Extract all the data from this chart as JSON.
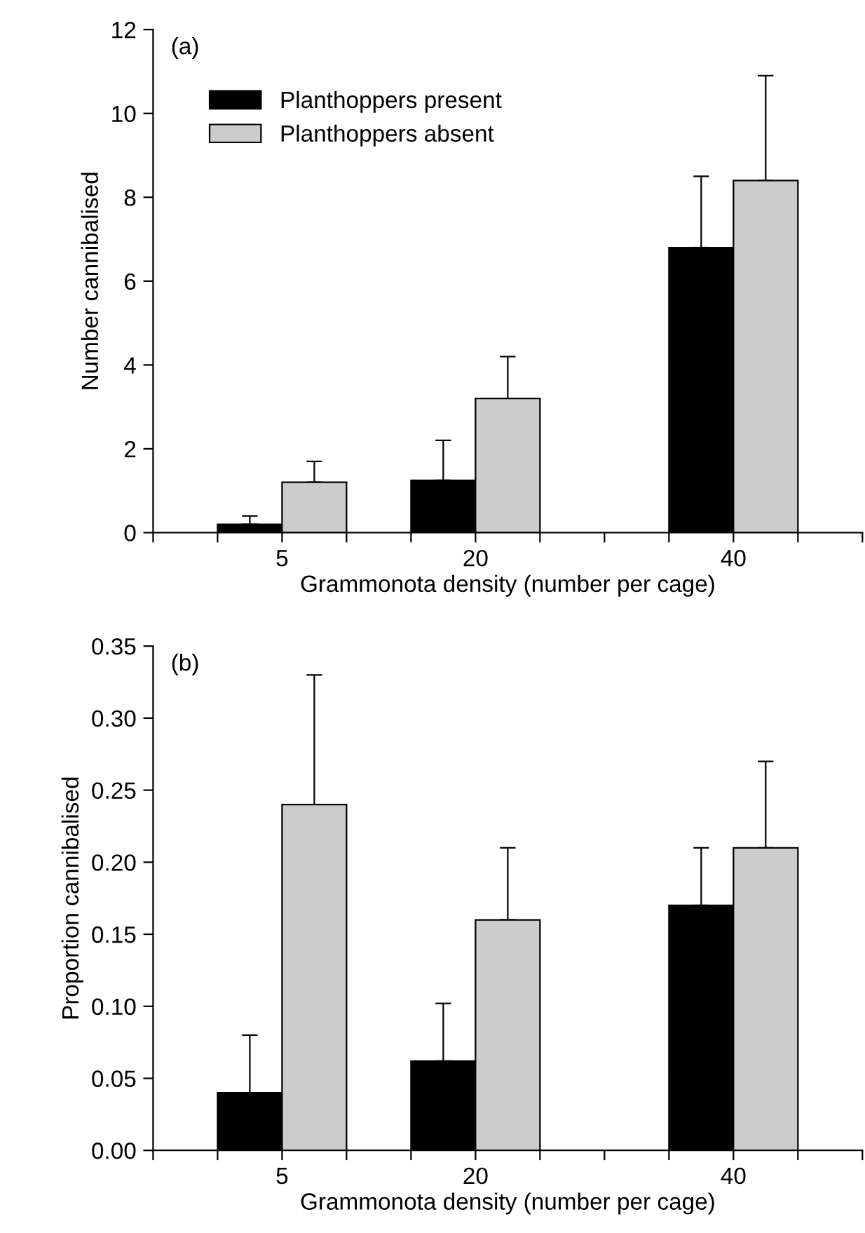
{
  "chart_data": [
    {
      "type": "bar",
      "xlabel": "Grammonota density (number per cage)",
      "ylabel": "Number cannibalised",
      "annotations": [
        "(a)"
      ],
      "x": [
        5,
        20,
        40
      ],
      "xlim": [
        -5,
        50
      ],
      "xticks": [
        {
          "value": -5,
          "label": null
        },
        {
          "value": 0,
          "label": null
        },
        5,
        {
          "value": 10,
          "label": null
        },
        {
          "value": 15,
          "label": null
        },
        20,
        {
          "value": 25,
          "label": null
        },
        {
          "value": 30,
          "label": null
        },
        {
          "value": 35,
          "label": null
        },
        40,
        {
          "value": 45,
          "label": null
        },
        {
          "value": 50,
          "label": null
        }
      ],
      "ylim": [
        0,
        12
      ],
      "yticks": [
        0,
        2,
        4,
        6,
        8,
        10,
        12
      ],
      "legend": "top left",
      "grid": false,
      "series": [
        {
          "name": "Planthoppers present",
          "color": "#000000",
          "values": [
            0.2,
            1.25,
            6.8
          ],
          "errors": [
            [
              0.2,
              0.4
            ],
            [
              1.25,
              2.2
            ],
            [
              6.8,
              8.5
            ]
          ]
        },
        {
          "name": "Planthoppers absent",
          "color": "#cccccc",
          "values": [
            1.2,
            3.2,
            8.4
          ],
          "errors": [
            [
              1.2,
              1.7
            ],
            [
              3.2,
              4.2
            ],
            [
              8.4,
              10.9
            ]
          ]
        }
      ]
    },
    {
      "type": "bar",
      "xlabel": "Grammonota density (number per cage)",
      "ylabel": "Proportion cannibalised",
      "annotations": [
        "(b)"
      ],
      "x": [
        5,
        20,
        40
      ],
      "xlim": [
        -5,
        50
      ],
      "xticks": [
        {
          "value": -5,
          "label": null
        },
        {
          "value": 0,
          "label": null
        },
        5,
        {
          "value": 10,
          "label": null
        },
        {
          "value": 15,
          "label": null
        },
        20,
        {
          "value": 25,
          "label": null
        },
        {
          "value": 30,
          "label": null
        },
        {
          "value": 35,
          "label": null
        },
        40,
        {
          "value": 45,
          "label": null
        },
        {
          "value": 50,
          "label": null
        }
      ],
      "ylim": [
        0,
        0.35
      ],
      "yticks": [
        {
          "value": 0,
          "label": "0.00"
        },
        {
          "value": 0.05,
          "label": "0.05"
        },
        {
          "value": 0.1,
          "label": "0.10"
        },
        {
          "value": 0.15,
          "label": "0.15"
        },
        {
          "value": 0.2,
          "label": "0.20"
        },
        {
          "value": 0.25,
          "label": "0.25"
        },
        {
          "value": 0.3,
          "label": "0.30"
        },
        {
          "value": 0.35,
          "label": "0.35"
        }
      ],
      "legend": false,
      "grid": false,
      "series": [
        {
          "color": "#000000",
          "values": [
            0.04,
            0.062,
            0.17
          ],
          "errors": [
            [
              0.04,
              0.08
            ],
            [
              0.062,
              0.102
            ],
            [
              0.17,
              0.21
            ]
          ]
        },
        {
          "color": "#cccccc",
          "values": [
            0.24,
            0.16,
            0.21
          ],
          "errors": [
            [
              0.24,
              0.33
            ],
            [
              0.16,
              0.21
            ],
            [
              0.21,
              0.27
            ]
          ]
        }
      ]
    }
  ]
}
